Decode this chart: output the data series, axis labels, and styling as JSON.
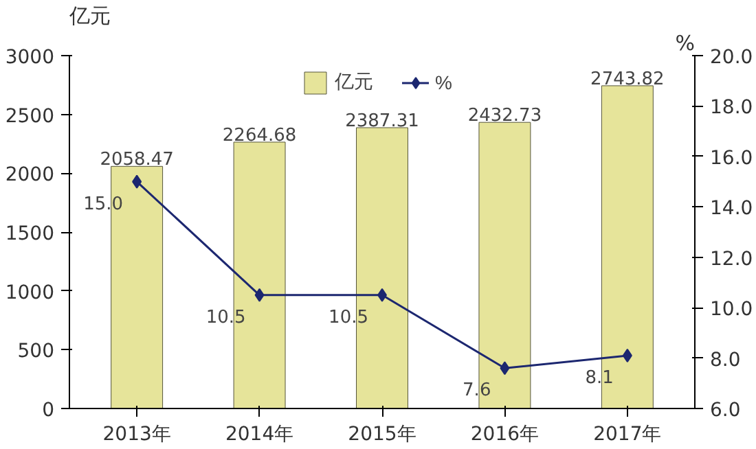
{
  "chart_data": {
    "type": "bar",
    "categories": [
      "2013年",
      "2014年",
      "2015年",
      "2016年",
      "2017年"
    ],
    "ylabel": "亿元",
    "y2label": "%",
    "series": [
      {
        "name": "亿元",
        "color": "#e6e49a",
        "values": [
          2058.47,
          2264.68,
          2387.31,
          2432.73,
          2743.82
        ],
        "value_labels": [
          "2058.47",
          "2264.68",
          "2387.31",
          "2432.73",
          "2743.82"
        ]
      },
      {
        "name": "%",
        "type": "line",
        "axis": "y2",
        "color": "#1c2770",
        "values": [
          15.0,
          10.5,
          10.5,
          7.6,
          8.1
        ],
        "value_labels": [
          "15.0",
          "10.5",
          "10.5",
          "7.6",
          "8.1"
        ],
        "marker": "diamond"
      }
    ],
    "ylim": [
      0,
      3000
    ],
    "yticks": [
      0,
      500,
      1000,
      1500,
      2000,
      2500,
      3000
    ],
    "y2lim": [
      6,
      20
    ],
    "y2ticks": [
      {
        "value": 6,
        "label": "6.0"
      },
      {
        "value": 8,
        "label": "8.0"
      },
      {
        "value": 10,
        "label": "10.0"
      },
      {
        "value": 12,
        "label": "12.0"
      },
      {
        "value": 14,
        "label": "14.0"
      },
      {
        "value": 16,
        "label": "16.0"
      },
      {
        "value": 18,
        "label": "18.0"
      },
      {
        "value": 20,
        "label": "20.0"
      }
    ],
    "grid": false,
    "legend": "top"
  }
}
